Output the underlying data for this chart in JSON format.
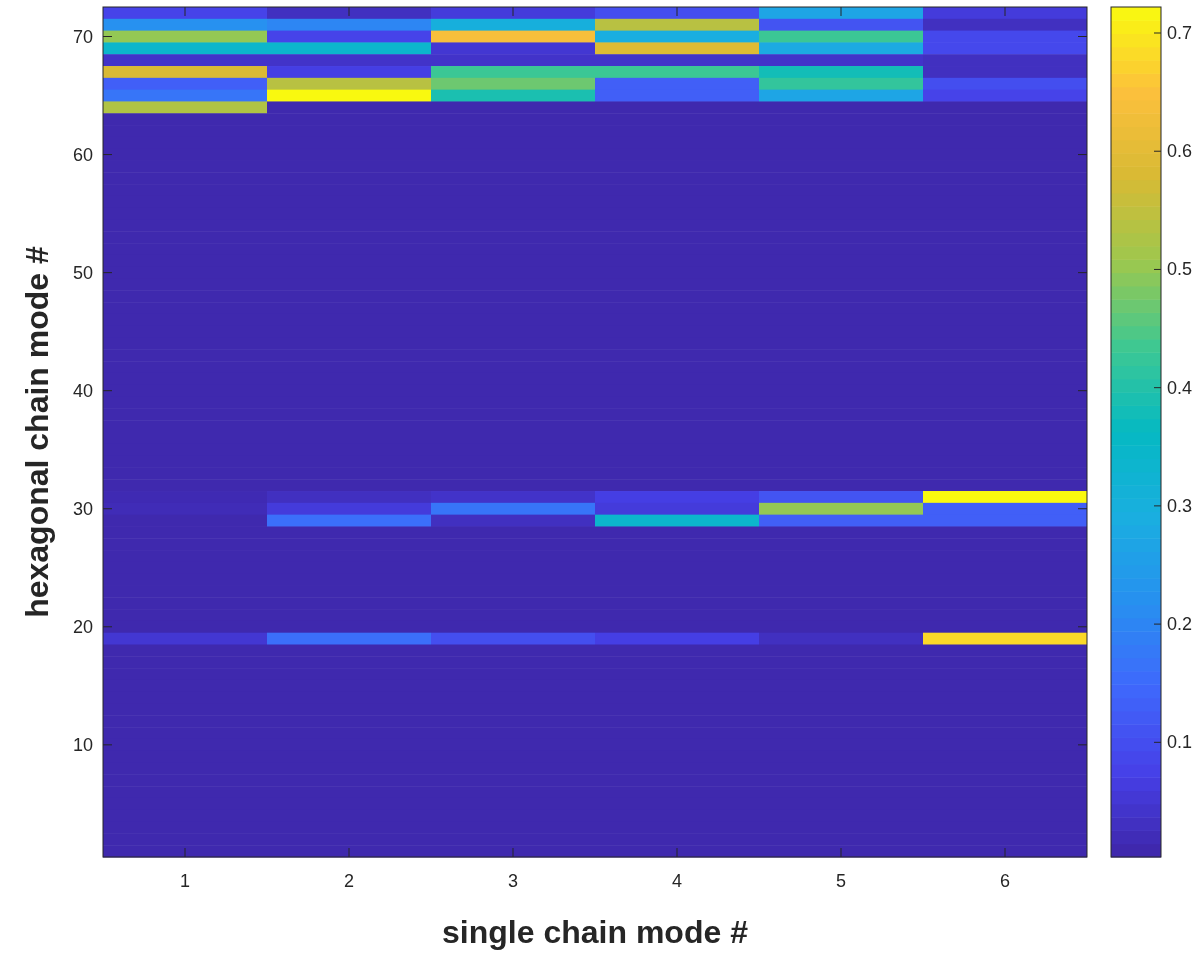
{
  "chart_data": {
    "type": "heatmap",
    "xlabel": "single chain mode #",
    "ylabel": "hexagonal chain mode #",
    "categories": [
      "1",
      "2",
      "3",
      "4",
      "5",
      "6"
    ],
    "ylim": [
      0.5,
      72.5
    ],
    "yticks": [
      10,
      20,
      30,
      40,
      50,
      60,
      70
    ],
    "clim": [
      0.003,
      0.722
    ],
    "cticks": [
      0.1,
      0.2,
      0.3,
      0.4,
      0.5,
      0.6,
      0.7
    ],
    "cells": [
      [
        0.08,
        0.03,
        0.06,
        0.1,
        0.27,
        0.06
      ],
      [
        0.22,
        0.2,
        0.3,
        0.54,
        0.11,
        0.03
      ],
      [
        0.5,
        0.08,
        0.64,
        0.29,
        0.43,
        0.09
      ],
      [
        0.34,
        0.34,
        0.05,
        0.59,
        0.28,
        0.09
      ],
      [
        0.04,
        0.04,
        0.04,
        0.04,
        0.04,
        0.03
      ],
      [
        0.58,
        0.07,
        0.43,
        0.43,
        0.38,
        0.03
      ],
      [
        0.13,
        0.54,
        0.47,
        0.13,
        0.42,
        0.1
      ],
      [
        0.17,
        0.72,
        0.39,
        0.13,
        0.27,
        0.08
      ],
      [
        0.53,
        0.01,
        0.01,
        0.01,
        0.01,
        0.01
      ],
      [
        0.01,
        0.01,
        0.01,
        0.01,
        0.01,
        0.01
      ],
      [
        0.01,
        0.01,
        0.01,
        0.01,
        0.01,
        0.01
      ],
      [
        0.01,
        0.01,
        0.01,
        0.01,
        0.01,
        0.01
      ],
      [
        0.01,
        0.01,
        0.01,
        0.01,
        0.01,
        0.01
      ],
      [
        0.01,
        0.01,
        0.01,
        0.01,
        0.01,
        0.01
      ],
      [
        0.01,
        0.01,
        0.01,
        0.01,
        0.01,
        0.01
      ],
      [
        0.01,
        0.01,
        0.01,
        0.01,
        0.01,
        0.01
      ],
      [
        0.01,
        0.01,
        0.01,
        0.01,
        0.01,
        0.01
      ],
      [
        0.01,
        0.01,
        0.01,
        0.01,
        0.01,
        0.01
      ],
      [
        0.01,
        0.01,
        0.01,
        0.01,
        0.01,
        0.01
      ],
      [
        0.01,
        0.01,
        0.01,
        0.01,
        0.01,
        0.01
      ],
      [
        0.01,
        0.01,
        0.01,
        0.01,
        0.01,
        0.01
      ],
      [
        0.01,
        0.01,
        0.01,
        0.01,
        0.01,
        0.01
      ],
      [
        0.01,
        0.01,
        0.01,
        0.01,
        0.01,
        0.01
      ],
      [
        0.01,
        0.01,
        0.01,
        0.01,
        0.01,
        0.01
      ],
      [
        0.01,
        0.01,
        0.01,
        0.01,
        0.01,
        0.01
      ],
      [
        0.01,
        0.01,
        0.01,
        0.01,
        0.01,
        0.01
      ],
      [
        0.01,
        0.01,
        0.01,
        0.01,
        0.01,
        0.01
      ],
      [
        0.01,
        0.01,
        0.01,
        0.01,
        0.01,
        0.01
      ],
      [
        0.01,
        0.01,
        0.01,
        0.01,
        0.01,
        0.01
      ],
      [
        0.01,
        0.01,
        0.01,
        0.01,
        0.01,
        0.01
      ],
      [
        0.01,
        0.01,
        0.01,
        0.01,
        0.01,
        0.01
      ],
      [
        0.01,
        0.01,
        0.01,
        0.01,
        0.01,
        0.01
      ],
      [
        0.01,
        0.01,
        0.01,
        0.01,
        0.01,
        0.01
      ],
      [
        0.01,
        0.01,
        0.01,
        0.01,
        0.01,
        0.01
      ],
      [
        0.01,
        0.01,
        0.01,
        0.01,
        0.01,
        0.01
      ],
      [
        0.01,
        0.01,
        0.01,
        0.01,
        0.01,
        0.01
      ],
      [
        0.01,
        0.01,
        0.01,
        0.01,
        0.01,
        0.01
      ],
      [
        0.01,
        0.01,
        0.01,
        0.01,
        0.01,
        0.01
      ],
      [
        0.01,
        0.01,
        0.01,
        0.01,
        0.01,
        0.01
      ],
      [
        0.01,
        0.01,
        0.01,
        0.01,
        0.01,
        0.01
      ],
      [
        0.01,
        0.01,
        0.01,
        0.01,
        0.01,
        0.01
      ],
      [
        0.015,
        0.03,
        0.04,
        0.07,
        0.11,
        0.72
      ],
      [
        0.02,
        0.06,
        0.17,
        0.06,
        0.5,
        0.13
      ],
      [
        0.01,
        0.16,
        0.03,
        0.34,
        0.13,
        0.13
      ],
      [
        0.01,
        0.01,
        0.01,
        0.01,
        0.01,
        0.01
      ],
      [
        0.01,
        0.01,
        0.01,
        0.01,
        0.01,
        0.01
      ],
      [
        0.01,
        0.01,
        0.01,
        0.01,
        0.01,
        0.01
      ],
      [
        0.01,
        0.01,
        0.01,
        0.01,
        0.01,
        0.01
      ],
      [
        0.01,
        0.01,
        0.01,
        0.01,
        0.01,
        0.01
      ],
      [
        0.01,
        0.01,
        0.01,
        0.01,
        0.01,
        0.01
      ],
      [
        0.01,
        0.01,
        0.01,
        0.01,
        0.01,
        0.01
      ],
      [
        0.01,
        0.01,
        0.01,
        0.01,
        0.01,
        0.01
      ],
      [
        0.01,
        0.01,
        0.01,
        0.01,
        0.01,
        0.01
      ],
      [
        0.05,
        0.16,
        0.1,
        0.07,
        0.03,
        0.68
      ],
      [
        0.01,
        0.01,
        0.01,
        0.01,
        0.01,
        0.01
      ],
      [
        0.01,
        0.01,
        0.01,
        0.01,
        0.01,
        0.01
      ],
      [
        0.01,
        0.01,
        0.01,
        0.01,
        0.01,
        0.01
      ],
      [
        0.01,
        0.01,
        0.01,
        0.01,
        0.01,
        0.01
      ],
      [
        0.01,
        0.01,
        0.01,
        0.01,
        0.01,
        0.01
      ],
      [
        0.01,
        0.01,
        0.01,
        0.01,
        0.01,
        0.01
      ],
      [
        0.01,
        0.01,
        0.01,
        0.01,
        0.01,
        0.01
      ],
      [
        0.01,
        0.01,
        0.01,
        0.01,
        0.01,
        0.01
      ],
      [
        0.01,
        0.01,
        0.01,
        0.01,
        0.01,
        0.01
      ],
      [
        0.01,
        0.01,
        0.01,
        0.01,
        0.01,
        0.01
      ],
      [
        0.01,
        0.01,
        0.01,
        0.01,
        0.01,
        0.01
      ],
      [
        0.01,
        0.01,
        0.01,
        0.01,
        0.01,
        0.01
      ],
      [
        0.01,
        0.01,
        0.01,
        0.01,
        0.01,
        0.01
      ],
      [
        0.01,
        0.01,
        0.01,
        0.01,
        0.01,
        0.01
      ],
      [
        0.01,
        0.01,
        0.01,
        0.01,
        0.01,
        0.01
      ],
      [
        0.01,
        0.01,
        0.01,
        0.01,
        0.01,
        0.01
      ],
      [
        0.01,
        0.01,
        0.01,
        0.01,
        0.01,
        0.01
      ],
      [
        0.01,
        0.01,
        0.01,
        0.01,
        0.01,
        0.01
      ]
    ]
  }
}
